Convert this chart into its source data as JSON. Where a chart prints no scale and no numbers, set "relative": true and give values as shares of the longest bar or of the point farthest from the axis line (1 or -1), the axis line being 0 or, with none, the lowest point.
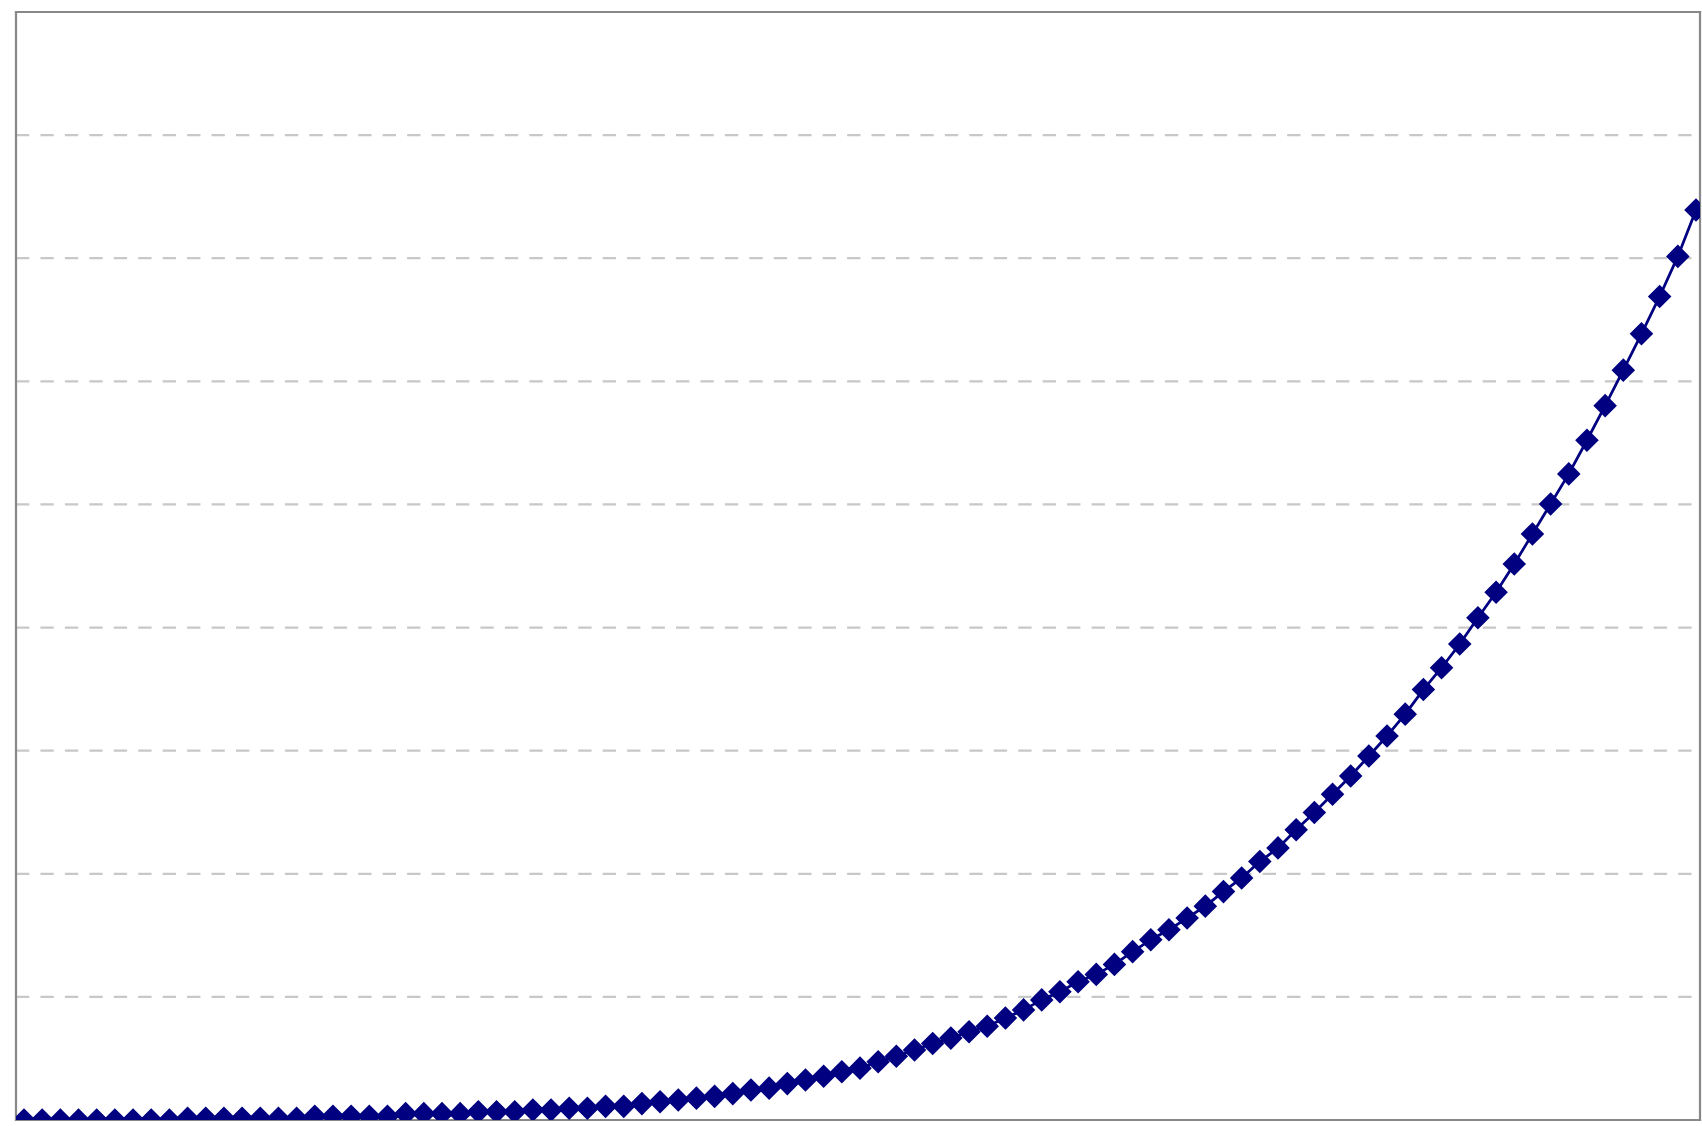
{
  "chart_data": {
    "type": "line",
    "relative": true,
    "grid": "y",
    "marker": "diamond",
    "line_style": "solid",
    "categories": [
      null,
      null,
      null,
      null,
      null,
      null,
      null,
      null,
      null,
      null,
      null,
      null,
      null,
      null,
      null,
      null,
      null,
      null,
      null,
      null,
      null,
      null,
      null,
      null,
      null,
      null,
      null,
      null,
      null,
      null,
      null,
      null,
      null,
      null,
      null,
      null,
      null,
      null,
      null,
      null,
      null,
      null,
      null,
      null,
      null,
      null,
      null,
      null,
      null,
      null,
      null,
      null,
      null,
      null,
      null,
      null,
      null,
      null,
      null,
      null,
      null,
      null,
      null,
      null,
      null,
      null,
      null,
      null,
      null,
      null,
      null,
      null,
      null,
      null,
      null,
      null,
      null,
      null,
      null,
      null,
      null,
      null,
      null,
      null,
      null,
      null,
      null,
      null,
      null,
      null,
      null,
      null,
      null
    ],
    "series": [
      {
        "color": "#000080",
        "values": [
          0,
          0,
          0,
          0,
          0,
          0,
          0,
          0,
          0,
          0.002,
          0.002,
          0.002,
          0.002,
          0.002,
          0.002,
          0.002,
          0.004,
          0.004,
          0.004,
          0.004,
          0.004,
          0.007,
          0.007,
          0.007,
          0.007,
          0.009,
          0.009,
          0.009,
          0.011,
          0.011,
          0.013,
          0.013,
          0.015,
          0.015,
          0.018,
          0.02,
          0.022,
          0.024,
          0.026,
          0.029,
          0.033,
          0.035,
          0.04,
          0.044,
          0.048,
          0.053,
          0.057,
          0.064,
          0.07,
          0.077,
          0.084,
          0.09,
          0.097,
          0.103,
          0.112,
          0.121,
          0.132,
          0.141,
          0.152,
          0.16,
          0.171,
          0.185,
          0.198,
          0.209,
          0.222,
          0.235,
          0.251,
          0.266,
          0.284,
          0.299,
          0.319,
          0.338,
          0.358,
          0.378,
          0.4,
          0.422,
          0.446,
          0.473,
          0.497,
          0.523,
          0.552,
          0.58,
          0.611,
          0.644,
          0.677,
          0.71,
          0.747,
          0.785,
          0.824,
          0.864,
          0.905,
          0.949,
          1
        ]
      }
    ]
  }
}
